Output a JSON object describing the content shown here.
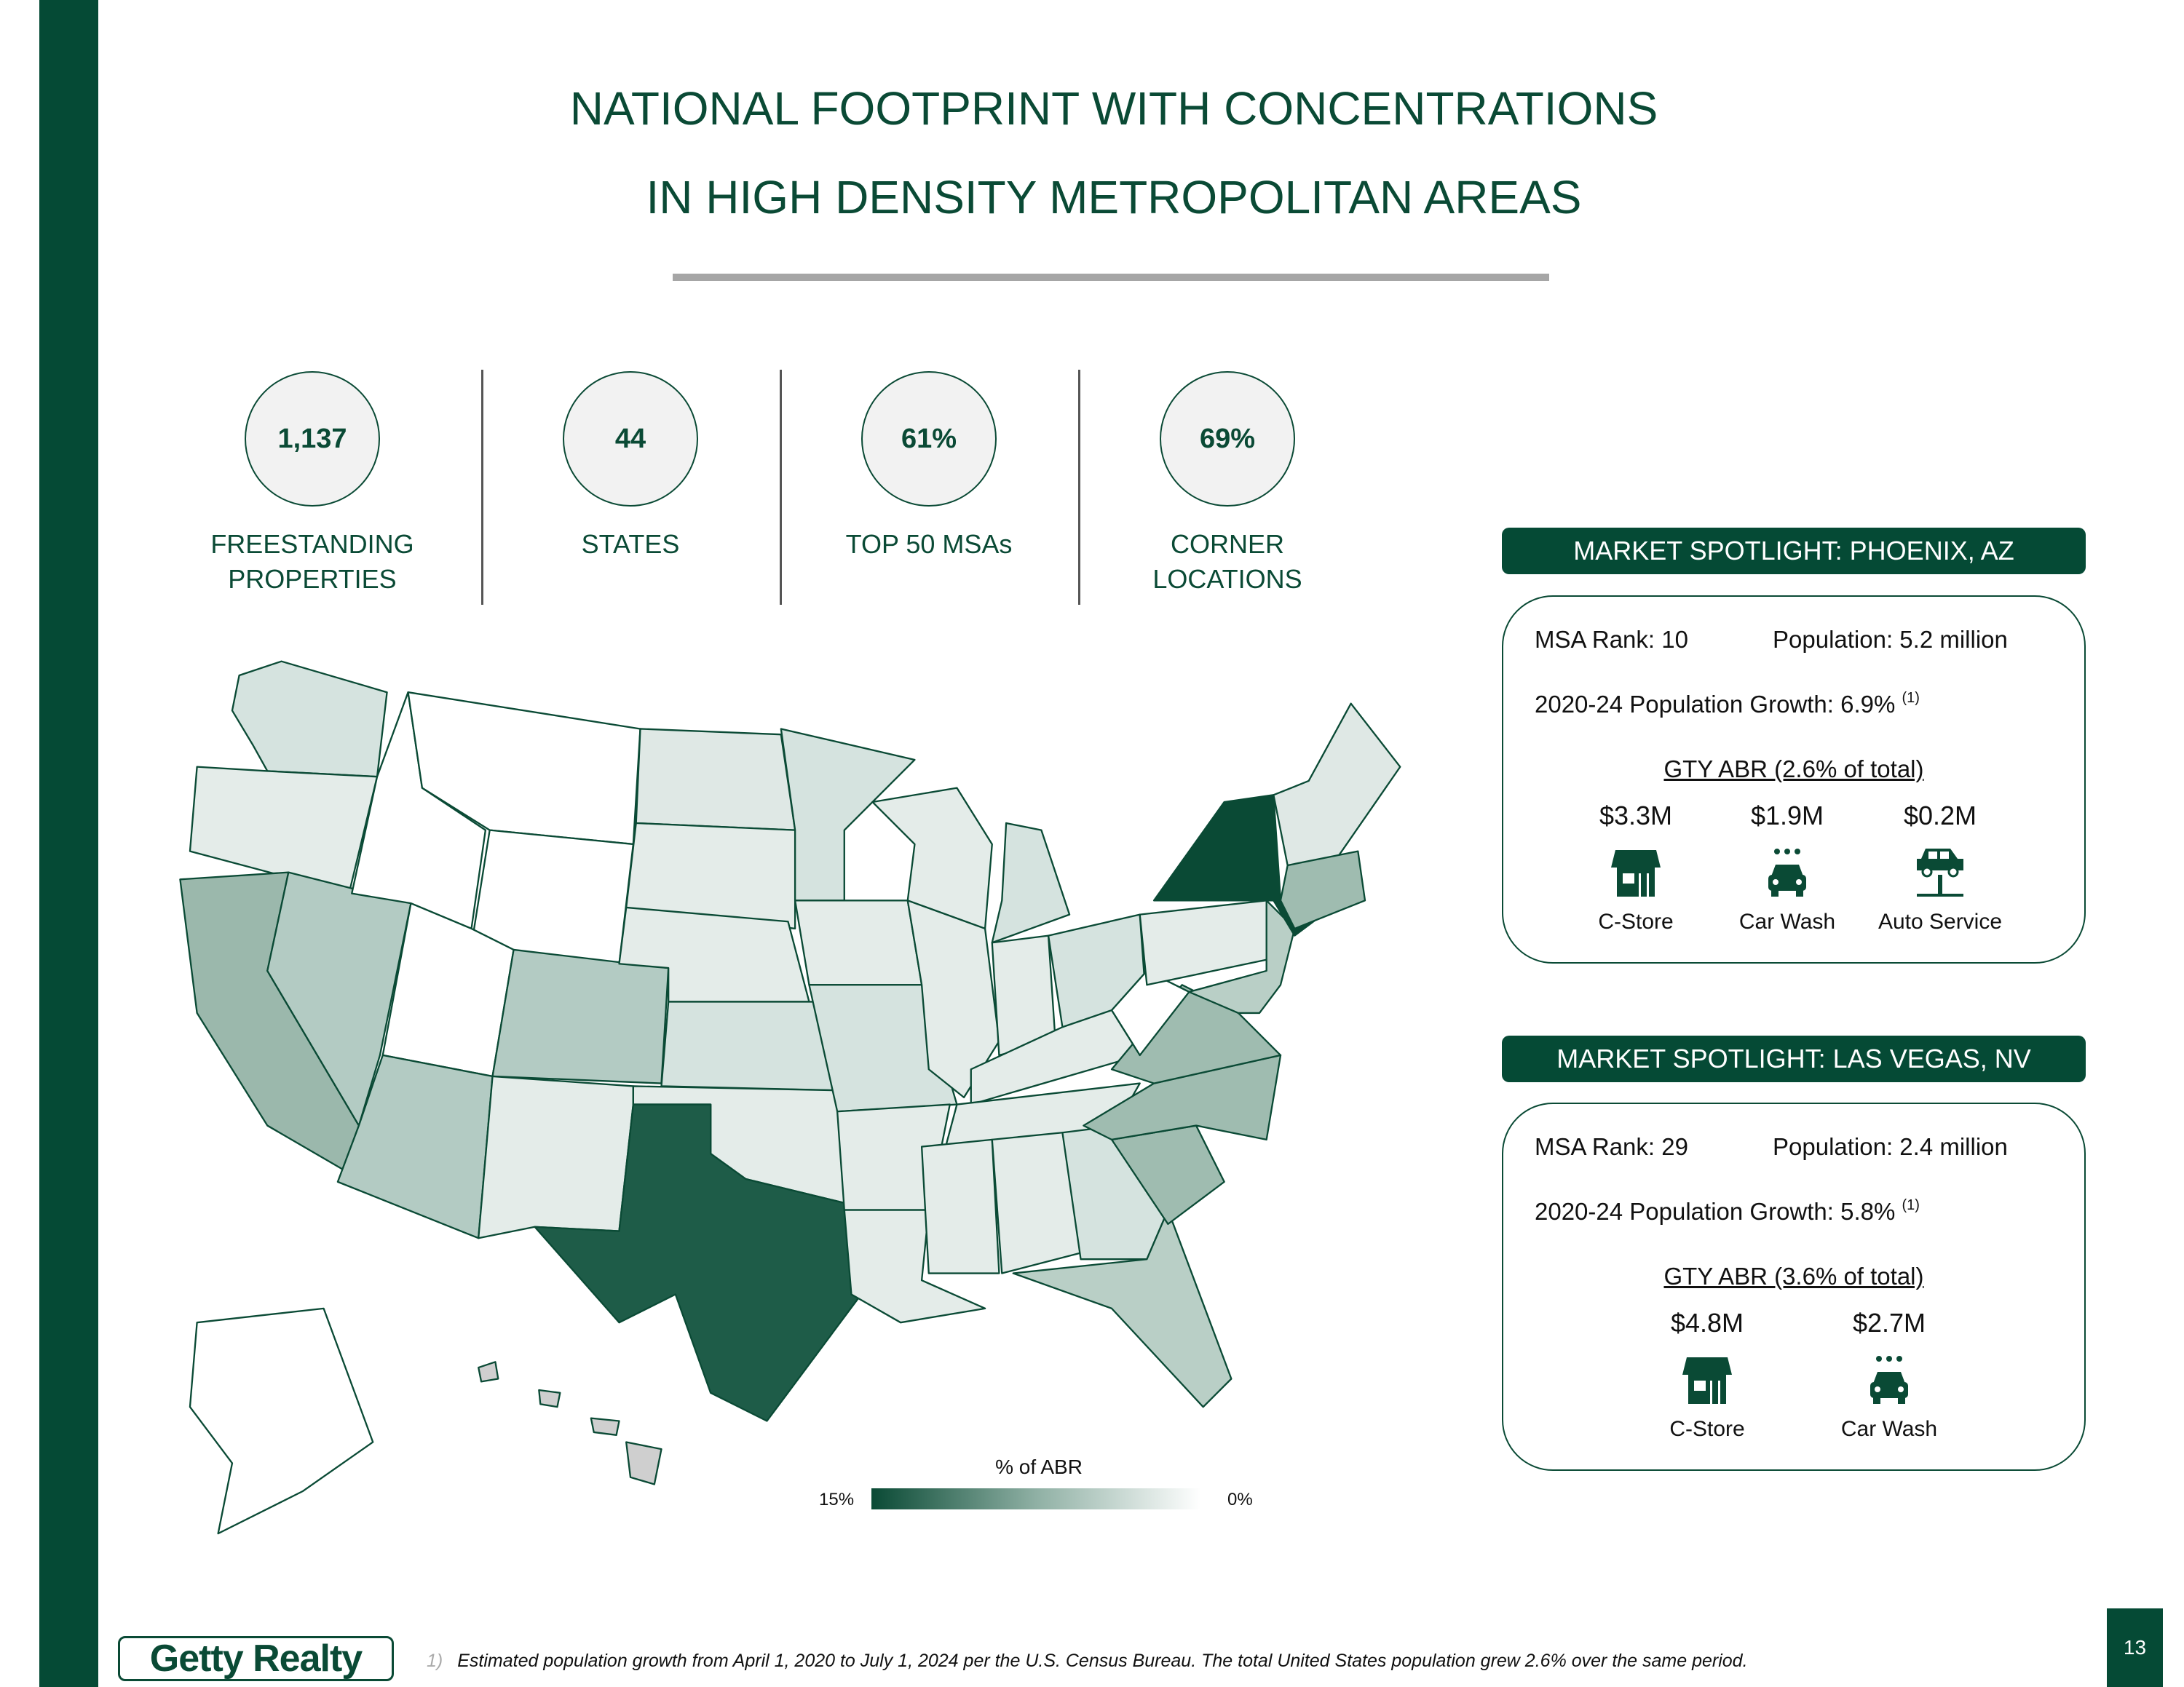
{
  "title": {
    "line1": "NATIONAL FOOTPRINT WITH CONCENTRATIONS",
    "line2": "IN HIGH DENSITY METROPOLITAN AREAS"
  },
  "stats": [
    {
      "value": "1,137",
      "label1": "FREESTANDING",
      "label2": "PROPERTIES"
    },
    {
      "value": "44",
      "label1": "STATES",
      "label2": ""
    },
    {
      "value": "61%",
      "label1": "TOP 50 MSAs",
      "label2": ""
    },
    {
      "value": "69%",
      "label1": "CORNER",
      "label2": "LOCATIONS"
    }
  ],
  "map": {
    "legend_title": "% of ABR",
    "legend_max": "15%",
    "legend_min": "0%",
    "colors": {
      "darkest": "#0a4a35",
      "dark": "#1e5c48",
      "mid": "#9fbcb0",
      "light": "#b3cbc3",
      "lighter": "#d5e3df",
      "lightest": "#e4ece9"
    }
  },
  "spotlights": [
    {
      "header": "MARKET SPOTLIGHT: PHOENIX, AZ",
      "rank": "MSA Rank: 10",
      "population": "Population: 5.2 million",
      "growth": "2020-24 Population Growth: 6.9%",
      "growth_note": "(1)",
      "abr": "GTY ABR (2.6% of total)",
      "items": [
        {
          "value": "$3.3M",
          "label": "C-Store",
          "icon": "store-icon"
        },
        {
          "value": "$1.9M",
          "label": "Car Wash",
          "icon": "car-wash-icon"
        },
        {
          "value": "$0.2M",
          "label": "Auto Service",
          "icon": "car-lift-icon"
        }
      ]
    },
    {
      "header": "MARKET SPOTLIGHT: LAS VEGAS, NV",
      "rank": "MSA Rank: 29",
      "population": "Population: 2.4 million",
      "growth": "2020-24 Population Growth: 5.8%",
      "growth_note": "(1)",
      "abr": "GTY ABR (3.6% of total)",
      "items": [
        {
          "value": "$4.8M",
          "label": "C-Store",
          "icon": "store-icon"
        },
        {
          "value": "$2.7M",
          "label": "Car Wash",
          "icon": "car-wash-icon"
        }
      ]
    }
  ],
  "footer": {
    "logo": "Getty Realty",
    "footnote_num": "1)",
    "footnote": "Estimated population growth from April 1, 2020 to July 1, 2024 per the U.S. Census Bureau. The total United States population grew 2.6% over the same period.",
    "page": "13"
  }
}
